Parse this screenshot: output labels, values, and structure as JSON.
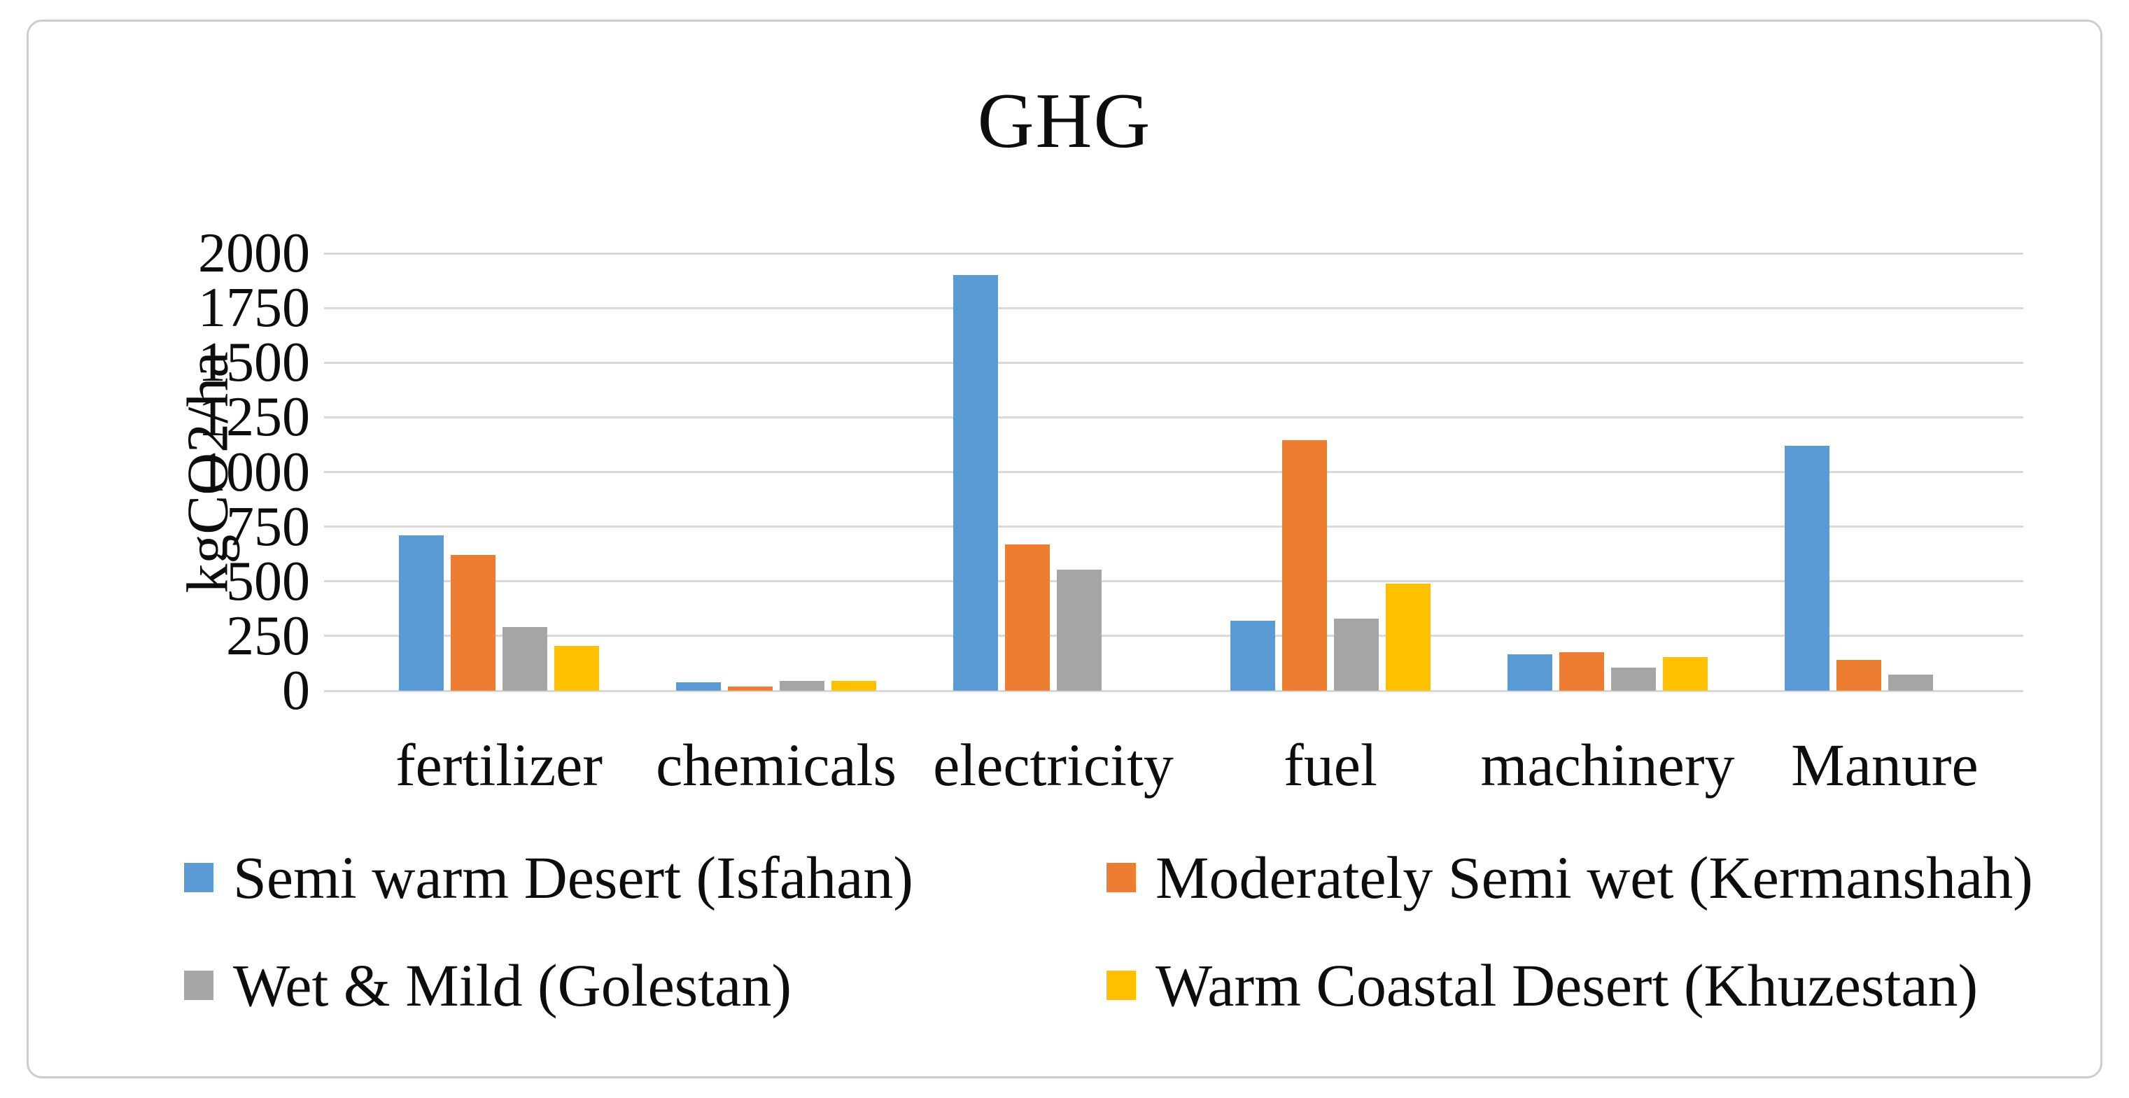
{
  "chart_data": {
    "type": "bar",
    "title": "GHG",
    "xlabel": "",
    "ylabel": "kgCO2/ha",
    "ylim": [
      0,
      2000
    ],
    "yticks": [
      0,
      250,
      500,
      750,
      1000,
      1250,
      1500,
      1750,
      2000
    ],
    "grid": true,
    "legend_position": "bottom",
    "categories": [
      "fertilizer",
      "chemicals",
      "electricity",
      "fuel",
      "machinery",
      "Manure"
    ],
    "series": [
      {
        "name": "Semi warm Desert (Isfahan)",
        "color": "#5B9BD5",
        "values": [
          710,
          40,
          1900,
          320,
          165,
          1120
        ]
      },
      {
        "name": "Moderately Semi wet (Kermanshah)",
        "color": "#ED7D31",
        "values": [
          620,
          20,
          670,
          1145,
          175,
          140
        ]
      },
      {
        "name": "Wet & Mild (Golestan)",
        "color": "#A5A5A5",
        "values": [
          290,
          45,
          555,
          330,
          105,
          75
        ]
      },
      {
        "name": "Warm Coastal Desert (Khuzestan)",
        "color": "#FFC000",
        "values": [
          205,
          45,
          0,
          490,
          155,
          0
        ]
      }
    ],
    "colors": {
      "gridline": "#d9d9d9",
      "text": "#0d0d0d",
      "frame_border": "#cdcdcd"
    }
  }
}
